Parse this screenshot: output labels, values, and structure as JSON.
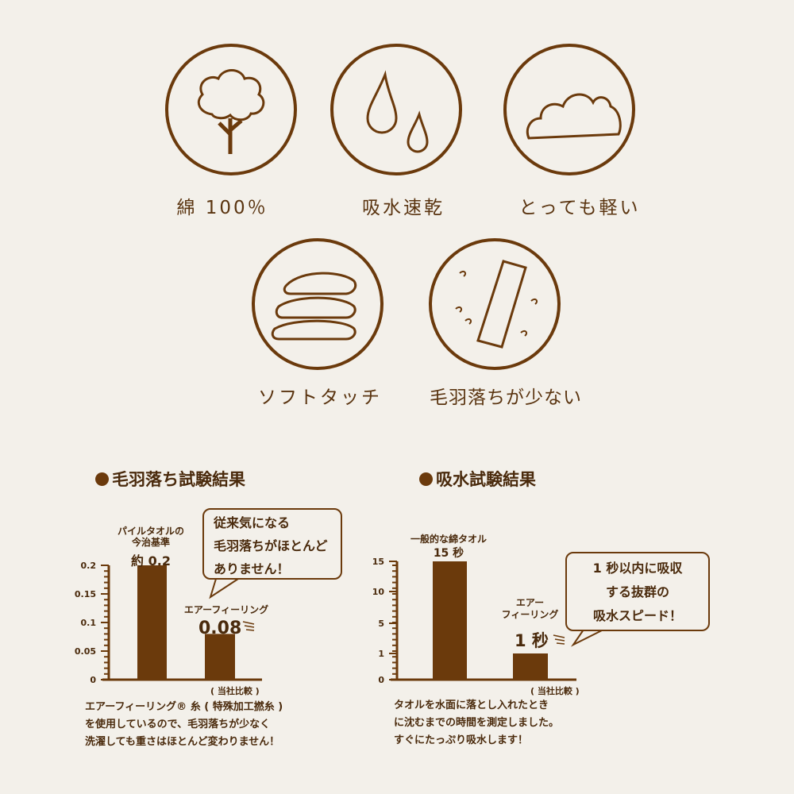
{
  "features": [
    {
      "label": "綿 100％",
      "icon": "cotton-icon"
    },
    {
      "label": "吸水速乾",
      "icon": "water-drops-icon"
    },
    {
      "label": "とっても軽い",
      "icon": "cloud-icon"
    },
    {
      "label": "ソフトタッチ",
      "icon": "stacked-towels-icon"
    },
    {
      "label": "毛羽落ちが少ない",
      "icon": "towel-lint-icon"
    }
  ],
  "lint": {
    "title": "毛羽落ち試験結果",
    "bubble": [
      "従来気になる",
      "毛羽落ちがほとんど",
      "ありません！"
    ],
    "bar1_label": [
      "パイルタオルの",
      "今治基準"
    ],
    "bar1_value": "約 0.2",
    "bar2_label": "エアーフィーリング",
    "bar2_value": "0.08",
    "compare": "( 当社比較 )",
    "note": [
      "エアーフィーリング® 糸 ( 特殊加工撚糸 )",
      "を使用しているので、毛羽落ちが少なく",
      "洗濯しても重さはほとんど変わりません！"
    ]
  },
  "absorb": {
    "title": "吸水試験結果",
    "bubble": [
      "1 秒以内に吸収",
      "する抜群の",
      "吸水スピード！"
    ],
    "bar1_label": "一般的な綿タオル",
    "bar1_value": "15 秒",
    "bar2_label": [
      "エアー",
      "フィーリング"
    ],
    "bar2_value": "1 秒",
    "compare": "( 当社比較 )",
    "note": [
      "タオルを水面に落とし入れたとき",
      "に沈むまでの時間を測定しました。",
      "すぐにたっぷり吸水します！"
    ]
  },
  "colors": {
    "brown": "#6b3a0c",
    "background": "#f3f0ea"
  },
  "chart_data": [
    {
      "type": "bar",
      "categories": [
        "パイルタオルの今治基準",
        "エアーフィーリング"
      ],
      "values": [
        0.2,
        0.08
      ],
      "ylim": [
        0,
        0.2
      ],
      "yticks": [
        "0",
        "0.05",
        "0.1",
        "0.15",
        "0.2"
      ]
    },
    {
      "type": "bar",
      "categories": [
        "一般的な綿タオル",
        "エアーフィーリング"
      ],
      "values": [
        15,
        1
      ],
      "ylim": [
        0,
        15
      ],
      "yticks": [
        "0",
        "1",
        "5",
        "10",
        "15"
      ]
    }
  ]
}
